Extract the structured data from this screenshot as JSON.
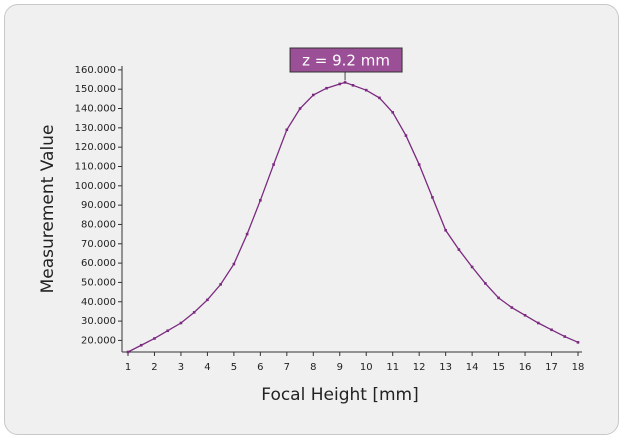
{
  "chart_data": {
    "type": "line",
    "x_label": "Focal Height [mm]",
    "y_label": "Measurement Value",
    "annotation": "z = 9.2 mm",
    "color": "#7b2a7f",
    "annotation_color": "#9b4f96",
    "x": [
      1,
      1.5,
      2,
      2.5,
      3,
      3.5,
      4,
      4.5,
      5,
      5.5,
      6,
      6.5,
      7,
      7.5,
      8,
      8.5,
      9,
      9.2,
      9.5,
      10,
      10.5,
      11,
      11.5,
      12,
      12.5,
      13,
      13.5,
      14,
      14.5,
      15,
      15.5,
      16,
      16.5,
      17,
      17.5,
      18
    ],
    "values": [
      14000,
      17500,
      21000,
      25000,
      29000,
      34500,
      41000,
      49000,
      59500,
      75000,
      92500,
      111000,
      129000,
      140000,
      147000,
      150500,
      152700,
      153500,
      152000,
      149500,
      145500,
      138000,
      126000,
      111000,
      94000,
      77000,
      67000,
      58000,
      49500,
      42000,
      37000,
      33000,
      29000,
      25500,
      22000,
      19000
    ],
    "xlim": [
      1,
      18
    ],
    "xticks": [
      1,
      2,
      3,
      4,
      5,
      6,
      7,
      8,
      9,
      10,
      11,
      12,
      13,
      14,
      15,
      16,
      17,
      18
    ],
    "ylim": [
      14000,
      162000
    ],
    "yticks": [
      {
        "value": 20000,
        "label": "20.000"
      },
      {
        "value": 30000,
        "label": "30.000"
      },
      {
        "value": 40000,
        "label": "40.000"
      },
      {
        "value": 50000,
        "label": "50.000"
      },
      {
        "value": 60000,
        "label": "60.000"
      },
      {
        "value": 70000,
        "label": "70.000"
      },
      {
        "value": 80000,
        "label": "80.000"
      },
      {
        "value": 90000,
        "label": "90.000"
      },
      {
        "value": 100000,
        "label": "100.000"
      },
      {
        "value": 110000,
        "label": "110.000"
      },
      {
        "value": 120000,
        "label": "120.000"
      },
      {
        "value": 130000,
        "label": "130.000"
      },
      {
        "value": 140000,
        "label": "140.000"
      },
      {
        "value": 150000,
        "label": "150.000"
      },
      {
        "value": 160000,
        "label": "160.000"
      }
    ]
  }
}
